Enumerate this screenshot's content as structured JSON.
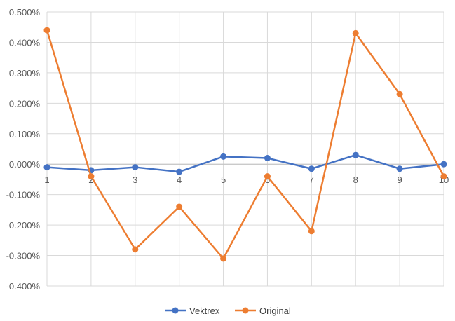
{
  "chart_data": {
    "type": "line",
    "x": [
      1,
      2,
      3,
      4,
      5,
      6,
      7,
      8,
      9,
      10
    ],
    "x_tick_labels": [
      "1",
      "2",
      "3",
      "4",
      "5",
      "6",
      "7",
      "8",
      "9",
      "10"
    ],
    "y_tick_labels": [
      "0.500%",
      "0.400%",
      "0.300%",
      "0.200%",
      "0.100%",
      "0.000%",
      "-0.100%",
      "-0.200%",
      "-0.300%",
      "-0.400%"
    ],
    "ylim": [
      -0.4,
      0.5
    ],
    "y_unit": "%",
    "grid": true,
    "legend_position": "bottom",
    "series": [
      {
        "name": "Vektrex",
        "color": "#4472C4",
        "values": [
          -0.01,
          -0.02,
          -0.01,
          -0.025,
          0.025,
          0.02,
          -0.015,
          0.03,
          -0.015,
          0.0
        ]
      },
      {
        "name": "Original",
        "color": "#ED7D31",
        "values": [
          0.44,
          -0.04,
          -0.28,
          -0.14,
          -0.31,
          -0.04,
          -0.22,
          0.43,
          0.23,
          -0.04
        ]
      }
    ],
    "title": "",
    "xlabel": "",
    "ylabel": ""
  }
}
